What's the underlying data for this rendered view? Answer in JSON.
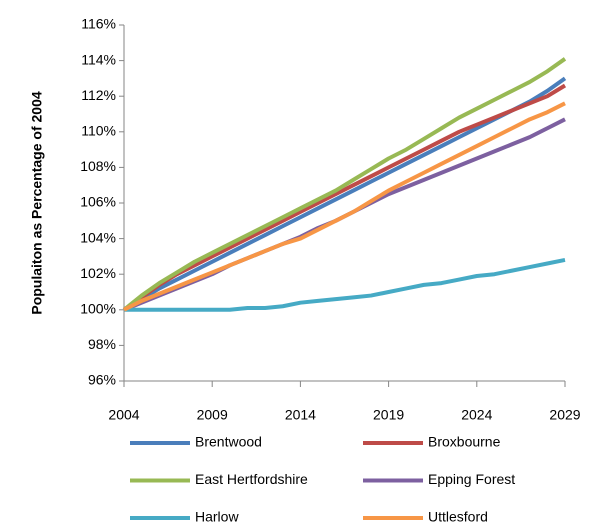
{
  "chart_data": {
    "type": "line",
    "y_label": "Populaiton as Percentage of 2004",
    "x": [
      2004,
      2005,
      2006,
      2007,
      2008,
      2009,
      2010,
      2011,
      2012,
      2013,
      2014,
      2015,
      2016,
      2017,
      2018,
      2019,
      2020,
      2021,
      2022,
      2023,
      2024,
      2025,
      2026,
      2027,
      2028,
      2029
    ],
    "xlim": [
      2004,
      2029
    ],
    "xticks": [
      2004,
      2009,
      2014,
      2019,
      2024,
      2029
    ],
    "ylim": [
      96,
      116
    ],
    "yticks": [
      {
        "value": 96,
        "label": "96%"
      },
      {
        "value": 98,
        "label": "98%"
      },
      {
        "value": 100,
        "label": "100%"
      },
      {
        "value": 102,
        "label": "102%"
      },
      {
        "value": 104,
        "label": "104%"
      },
      {
        "value": 106,
        "label": "106%"
      },
      {
        "value": 108,
        "label": "108%"
      },
      {
        "value": 110,
        "label": "110%"
      },
      {
        "value": 112,
        "label": "112%"
      },
      {
        "value": 114,
        "label": "114%"
      },
      {
        "value": 116,
        "label": "116%"
      }
    ],
    "series": [
      {
        "name": "Brentwood",
        "color": "#4a7ebb",
        "values": [
          100,
          100.6,
          101.2,
          101.7,
          102.2,
          102.7,
          103.2,
          103.7,
          104.2,
          104.7,
          105.2,
          105.7,
          106.2,
          106.7,
          107.2,
          107.7,
          108.2,
          108.7,
          109.2,
          109.7,
          110.2,
          110.7,
          111.2,
          111.7,
          112.3,
          113.0
        ]
      },
      {
        "name": "Broxbourne",
        "color": "#be4b48",
        "values": [
          100,
          100.7,
          101.4,
          102.0,
          102.5,
          103.0,
          103.5,
          104.0,
          104.5,
          105.0,
          105.5,
          106.0,
          106.5,
          107.0,
          107.5,
          108.0,
          108.5,
          109.0,
          109.5,
          110.0,
          110.4,
          110.8,
          111.2,
          111.6,
          112.0,
          112.6
        ]
      },
      {
        "name": "East Hertfordshire",
        "color": "#98b954",
        "values": [
          100,
          100.8,
          101.5,
          102.1,
          102.7,
          103.2,
          103.7,
          104.2,
          104.7,
          105.2,
          105.7,
          106.2,
          106.7,
          107.3,
          107.9,
          108.5,
          109.0,
          109.6,
          110.2,
          110.8,
          111.3,
          111.8,
          112.3,
          112.8,
          113.4,
          114.1
        ]
      },
      {
        "name": "Epping Forest",
        "color": "#7d60a0",
        "values": [
          100,
          100.4,
          100.8,
          101.2,
          101.6,
          102.0,
          102.5,
          102.9,
          103.3,
          103.7,
          104.1,
          104.6,
          105.0,
          105.5,
          106.0,
          106.5,
          106.9,
          107.3,
          107.7,
          108.1,
          108.5,
          108.9,
          109.3,
          109.7,
          110.2,
          110.7
        ]
      },
      {
        "name": "Harlow",
        "color": "#46aac5",
        "values": [
          100,
          100,
          100,
          100,
          100,
          100,
          100,
          100.1,
          100.1,
          100.2,
          100.4,
          100.5,
          100.6,
          100.7,
          100.8,
          101.0,
          101.2,
          101.4,
          101.5,
          101.7,
          101.9,
          102.0,
          102.2,
          102.4,
          102.6,
          102.8
        ]
      },
      {
        "name": "Uttlesford",
        "color": "#f79646",
        "values": [
          100,
          100.5,
          100.9,
          101.3,
          101.7,
          102.1,
          102.5,
          102.9,
          103.3,
          103.7,
          104.0,
          104.5,
          105.0,
          105.5,
          106.1,
          106.7,
          107.2,
          107.7,
          108.2,
          108.7,
          109.2,
          109.7,
          110.2,
          110.7,
          111.1,
          111.6
        ]
      }
    ],
    "grid": false
  }
}
